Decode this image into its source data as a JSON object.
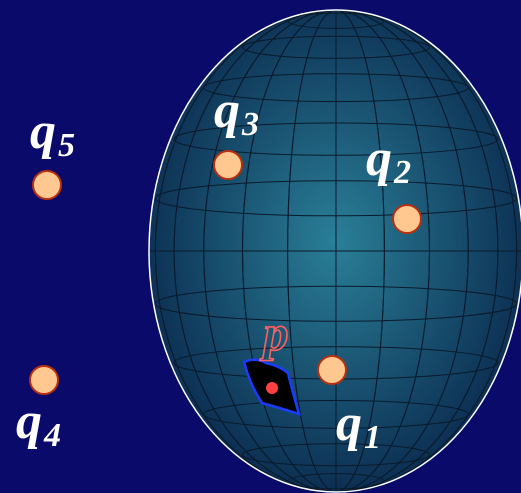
{
  "colors": {
    "background": "#0a0a6a",
    "sphere_center": "#2a7f98",
    "sphere_edge": "#0a2a4e",
    "sphere_outline": "#ffffff",
    "grid": "#0a1a2c",
    "label": "#ffffff",
    "point_fill": "#ffc890",
    "point_outline": "#b83010",
    "patch_fill": "#000000",
    "patch_outline": "#1a3cff",
    "p_label": "#ff6060",
    "p_dot": "#ff4040"
  },
  "points": [
    {
      "id": "q1",
      "letter": "q",
      "sub": "1"
    },
    {
      "id": "q2",
      "letter": "q",
      "sub": "2"
    },
    {
      "id": "q3",
      "letter": "q",
      "sub": "3"
    },
    {
      "id": "q4",
      "letter": "q",
      "sub": "4"
    },
    {
      "id": "q5",
      "letter": "q",
      "sub": "5"
    }
  ],
  "query_label": "p"
}
